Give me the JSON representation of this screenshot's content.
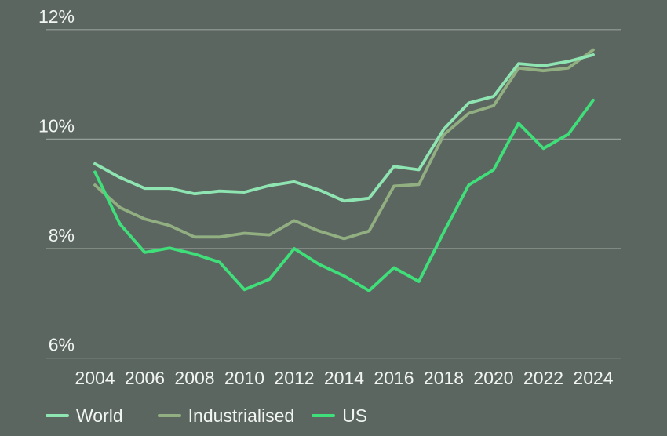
{
  "colors": {
    "background": "#5c6660",
    "grid": "#c8cdc9",
    "text": "#f2f6f3",
    "world": "#8fe5b2",
    "industrialised": "#92af82",
    "us": "#3fdf7a"
  },
  "legend": {
    "items": [
      {
        "label": "World",
        "color_key": "world"
      },
      {
        "label": "Industrialised",
        "color_key": "industrialised"
      },
      {
        "label": "US",
        "color_key": "us"
      }
    ]
  },
  "chart_data": {
    "type": "line",
    "title": "",
    "xlabel": "",
    "ylabel": "",
    "x": [
      2004,
      2005,
      2006,
      2007,
      2008,
      2009,
      2010,
      2011,
      2012,
      2013,
      2014,
      2015,
      2016,
      2017,
      2018,
      2019,
      2020,
      2021,
      2022,
      2023,
      2024
    ],
    "x_tick_labels": [
      "2004",
      "2006",
      "2008",
      "2010",
      "2012",
      "2014",
      "2016",
      "2018",
      "2020",
      "2022",
      "2024"
    ],
    "x_tick_years": [
      2004,
      2006,
      2008,
      2010,
      2012,
      2014,
      2016,
      2018,
      2020,
      2022,
      2024
    ],
    "y_ticks": [
      6,
      8,
      10,
      12
    ],
    "y_tick_labels": [
      "6%",
      "8%",
      "10%",
      "12%"
    ],
    "ylim": [
      5.9,
      12.5
    ],
    "grid": "horizontal",
    "legend_position": "bottom-left",
    "series": [
      {
        "name": "World",
        "color_key": "world",
        "values": [
          9.55,
          9.3,
          9.1,
          9.1,
          9.0,
          9.05,
          9.03,
          9.15,
          9.22,
          9.07,
          8.87,
          8.92,
          9.5,
          9.44,
          10.18,
          10.66,
          10.78,
          11.38,
          11.34,
          11.42,
          11.54
        ]
      },
      {
        "name": "Industrialised",
        "color_key": "industrialised",
        "values": [
          9.16,
          8.75,
          8.54,
          8.42,
          8.21,
          8.21,
          8.28,
          8.25,
          8.51,
          8.32,
          8.18,
          8.32,
          9.14,
          9.17,
          10.08,
          10.47,
          10.61,
          11.3,
          11.25,
          11.3,
          11.63
        ]
      },
      {
        "name": "US",
        "color_key": "us",
        "values": [
          9.4,
          8.45,
          7.93,
          8.01,
          7.9,
          7.75,
          7.25,
          7.44,
          8.0,
          7.71,
          7.5,
          7.23,
          7.65,
          7.4,
          8.3,
          9.16,
          9.44,
          10.29,
          9.83,
          10.09,
          10.71
        ]
      }
    ]
  }
}
